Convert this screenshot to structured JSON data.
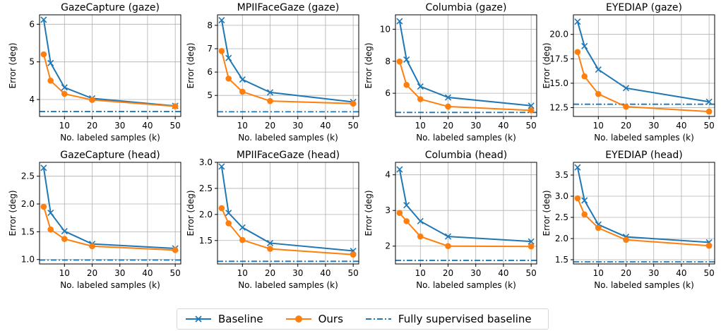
{
  "chart_data": [
    {
      "type": "line",
      "title": "GazeCapture (gaze)",
      "xlabel": "No. labeled samples (k)",
      "ylabel": "Error (deg)",
      "x": [
        2.5,
        5,
        10,
        20,
        50
      ],
      "xlim": [
        1,
        52
      ],
      "xticks": [
        10,
        20,
        30,
        40,
        50
      ],
      "ylim": [
        3.55,
        6.25
      ],
      "yticks": [
        4,
        5,
        6
      ],
      "yfmt": 0,
      "grid": true,
      "series": [
        {
          "name": "Baseline",
          "values": [
            6.12,
            4.97,
            4.32,
            4.03,
            3.83
          ]
        },
        {
          "name": "Ours",
          "values": [
            5.2,
            4.5,
            4.15,
            3.99,
            3.82
          ]
        }
      ],
      "fully_supervised": 3.68
    },
    {
      "type": "line",
      "title": "MPIIFaceGaze (gaze)",
      "xlabel": "No. labeled samples (k)",
      "ylabel": "Error (deg)",
      "x": [
        2.5,
        5,
        10,
        20,
        50
      ],
      "xlim": [
        1,
        52
      ],
      "xticks": [
        10,
        20,
        30,
        40,
        50
      ],
      "ylim": [
        4.1,
        8.45
      ],
      "yticks": [
        5,
        6,
        7,
        8
      ],
      "yfmt": 0,
      "grid": true,
      "series": [
        {
          "name": "Baseline",
          "values": [
            8.22,
            6.6,
            5.68,
            5.13,
            4.72
          ]
        },
        {
          "name": "Ours",
          "values": [
            6.9,
            5.72,
            5.16,
            4.76,
            4.65
          ]
        }
      ],
      "fully_supervised": 4.3
    },
    {
      "type": "line",
      "title": "Columbia (gaze)",
      "xlabel": "No. labeled samples (k)",
      "ylabel": "Error (deg)",
      "x": [
        2.5,
        5,
        10,
        20,
        50
      ],
      "xlim": [
        1,
        52
      ],
      "xticks": [
        10,
        20,
        30,
        40,
        50
      ],
      "ylim": [
        4.55,
        10.9
      ],
      "yticks": [
        6,
        8,
        10
      ],
      "yfmt": 0,
      "grid": true,
      "series": [
        {
          "name": "Baseline",
          "values": [
            10.5,
            8.1,
            6.42,
            5.74,
            5.22
          ]
        },
        {
          "name": "Ours",
          "values": [
            7.98,
            6.52,
            5.63,
            5.17,
            4.93
          ]
        }
      ],
      "fully_supervised": 4.8
    },
    {
      "type": "line",
      "title": "EYEDIAP (gaze)",
      "xlabel": "No. labeled samples (k)",
      "ylabel": "Error (deg)",
      "x": [
        2.5,
        5,
        10,
        20,
        50
      ],
      "xlim": [
        1,
        52
      ],
      "xticks": [
        10,
        20,
        30,
        40,
        50
      ],
      "ylim": [
        11.6,
        22.0
      ],
      "yticks": [
        12.5,
        15.0,
        17.5,
        20.0
      ],
      "yfmt": 1,
      "grid": true,
      "series": [
        {
          "name": "Baseline",
          "values": [
            21.3,
            18.8,
            16.4,
            14.5,
            13.1
          ]
        },
        {
          "name": "Ours",
          "values": [
            18.2,
            15.7,
            13.9,
            12.6,
            12.1
          ]
        }
      ],
      "fully_supervised": 12.85
    },
    {
      "type": "line",
      "title": "GazeCapture (head)",
      "xlabel": "No. labeled samples (k)",
      "ylabel": "Error (deg)",
      "x": [
        2.5,
        5,
        10,
        20,
        50
      ],
      "xlim": [
        1,
        52
      ],
      "xticks": [
        10,
        20,
        30,
        40,
        50
      ],
      "ylim": [
        0.92,
        2.75
      ],
      "yticks": [
        1.0,
        1.5,
        2.0,
        2.5
      ],
      "yfmt": 1,
      "grid": true,
      "series": [
        {
          "name": "Baseline",
          "values": [
            2.65,
            1.84,
            1.51,
            1.28,
            1.2
          ]
        },
        {
          "name": "Ours",
          "values": [
            1.95,
            1.54,
            1.37,
            1.24,
            1.17
          ]
        }
      ],
      "fully_supervised": 0.99
    },
    {
      "type": "line",
      "title": "MPIIFaceGaze (head)",
      "xlabel": "No. labeled samples (k)",
      "ylabel": "Error (deg)",
      "x": [
        2.5,
        5,
        10,
        20,
        50
      ],
      "xlim": [
        1,
        52
      ],
      "xticks": [
        10,
        20,
        30,
        40,
        50
      ],
      "ylim": [
        1.05,
        3.0
      ],
      "yticks": [
        1.5,
        2.0,
        2.5,
        3.0
      ],
      "yfmt": 1,
      "grid": true,
      "series": [
        {
          "name": "Baseline",
          "values": [
            2.92,
            2.03,
            1.75,
            1.45,
            1.3
          ]
        },
        {
          "name": "Ours",
          "values": [
            2.12,
            1.83,
            1.51,
            1.34,
            1.23
          ]
        }
      ],
      "fully_supervised": 1.1
    },
    {
      "type": "line",
      "title": "Columbia (head)",
      "xlabel": "No. labeled samples (k)",
      "ylabel": "Error (deg)",
      "x": [
        2.5,
        5,
        10,
        20,
        50
      ],
      "xlim": [
        1,
        52
      ],
      "xticks": [
        10,
        20,
        30,
        40,
        50
      ],
      "ylim": [
        1.5,
        4.35
      ],
      "yticks": [
        2,
        3,
        4
      ],
      "yfmt": 0,
      "grid": true,
      "series": [
        {
          "name": "Baseline",
          "values": [
            4.15,
            3.15,
            2.7,
            2.27,
            2.13
          ]
        },
        {
          "name": "Ours",
          "values": [
            2.93,
            2.7,
            2.27,
            2.0,
            1.99
          ]
        }
      ],
      "fully_supervised": 1.6
    },
    {
      "type": "line",
      "title": "EYEDIAP (head)",
      "xlabel": "No. labeled samples (k)",
      "ylabel": "Error (deg)",
      "x": [
        2.5,
        5,
        10,
        20,
        50
      ],
      "xlim": [
        1,
        52
      ],
      "xticks": [
        10,
        20,
        30,
        40,
        50
      ],
      "ylim": [
        1.4,
        3.8
      ],
      "yticks": [
        1.5,
        2.0,
        2.5,
        3.0,
        3.5
      ],
      "yfmt": 1,
      "grid": true,
      "series": [
        {
          "name": "Baseline",
          "values": [
            3.68,
            2.9,
            2.33,
            2.04,
            1.91
          ]
        },
        {
          "name": "Ours",
          "values": [
            2.95,
            2.57,
            2.25,
            1.97,
            1.83
          ]
        }
      ],
      "fully_supervised": 1.45
    }
  ],
  "legend": {
    "placement": "bottom-center",
    "items": [
      {
        "label": "Baseline",
        "marker": "x",
        "style": "solid"
      },
      {
        "label": "Ours",
        "marker": "circle",
        "style": "solid"
      },
      {
        "label": "Fully supervised baseline",
        "marker": "none",
        "style": "dash-dot"
      }
    ]
  },
  "colors": {
    "baseline": "#1f77b4",
    "ours": "#ff7f0e",
    "fully_supervised": "#1f77b4",
    "grid": "#b0b0b0",
    "axis": "#000000"
  }
}
